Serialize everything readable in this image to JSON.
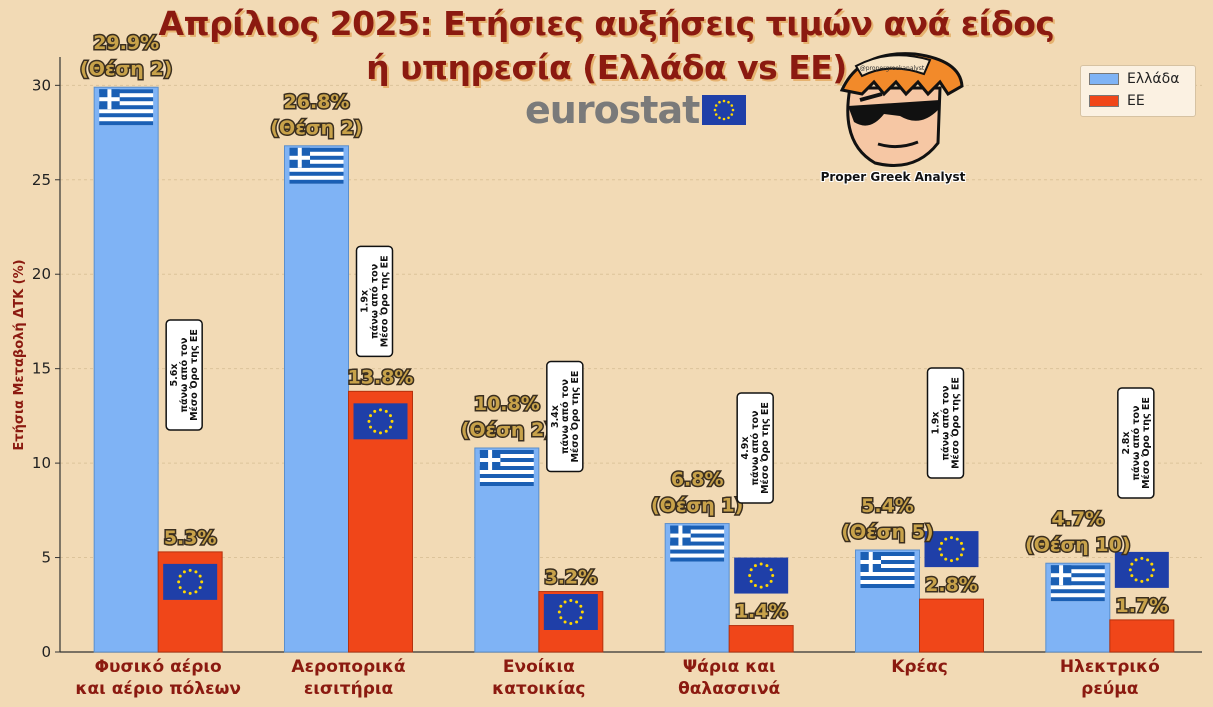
{
  "header": {
    "title_line1": "Απρίλιος 2025: Ετήσιες αυξήσεις τιμών ανά είδος",
    "title_line2": "ή υπηρεσία (Ελλάδα vs ΕΕ)"
  },
  "branding": {
    "eurostat_text": "eurostat",
    "mascot_caption": "Proper Greek Analyst",
    "mascot_cap_text": "@propergreekanalyst"
  },
  "legend": {
    "items": [
      {
        "label": "Ελλάδα",
        "color": "#7fb3f5"
      },
      {
        "label": "ΕΕ",
        "color": "#f04619"
      }
    ]
  },
  "colors": {
    "greece": "#7fb3f5",
    "eu": "#f04619",
    "label_gold": "#c8a24a",
    "background": "#f2dab5",
    "title": "#8b1a10",
    "eu_flag": "#1f3fa8",
    "eu_stars": "#ffd700"
  },
  "chart_data": {
    "type": "bar",
    "ylabel": "Ετήσια Μεταβολή ΔΤΚ (%)",
    "ylim": [
      0,
      31.5
    ],
    "yticks": [
      0,
      5,
      10,
      15,
      20,
      25,
      30
    ],
    "grid": true,
    "legend_position": "top-right",
    "categories": [
      [
        "Φυσικό αέριο",
        "και αέριο πόλεων"
      ],
      [
        "Αεροπορικά",
        "εισιτήρια"
      ],
      [
        "Ενοίκια",
        "κατοικίας"
      ],
      [
        "Ψάρια και",
        "θαλασσινά"
      ],
      [
        "Κρέας"
      ],
      [
        "Ηλεκτρικό",
        "ρεύμα"
      ]
    ],
    "series": [
      {
        "name": "Ελλάδα",
        "values": [
          29.9,
          26.8,
          10.8,
          6.8,
          5.4,
          4.7
        ]
      },
      {
        "name": "ΕΕ",
        "values": [
          5.3,
          13.8,
          3.2,
          1.4,
          2.8,
          1.7
        ]
      }
    ],
    "greece_labels": [
      "29.9%",
      "26.8%",
      "10.8%",
      "6.8%",
      "5.4%",
      "4.7%"
    ],
    "greece_ranks": [
      "(Θέση 2)",
      "(Θέση 2)",
      "(Θέση 2)",
      "(Θέση 1)",
      "(Θέση 5)",
      "(Θέση 10)"
    ],
    "eu_labels": [
      "5.3%",
      "13.8%",
      "3.2%",
      "1.4%",
      "2.8%",
      "1.7%"
    ],
    "annotations": [
      [
        "5.6x",
        "πάνω από τον",
        "Μέσο Όρο της ΕΕ"
      ],
      [
        "1.9x",
        "πάνω από τον",
        "Μέσο Όρο της ΕΕ"
      ],
      [
        "3.4x",
        "πάνω από τον",
        "Μέσο Όρο της ΕΕ"
      ],
      [
        "4.9x",
        "πάνω από τον",
        "Μέσο Όρο της ΕΕ"
      ],
      [
        "1.9x",
        "πάνω από τον",
        "Μέσο Όρο της ΕΕ"
      ],
      [
        "2.8x",
        "πάνω από τον",
        "Μέσο Όρο της ΕΕ"
      ]
    ]
  }
}
